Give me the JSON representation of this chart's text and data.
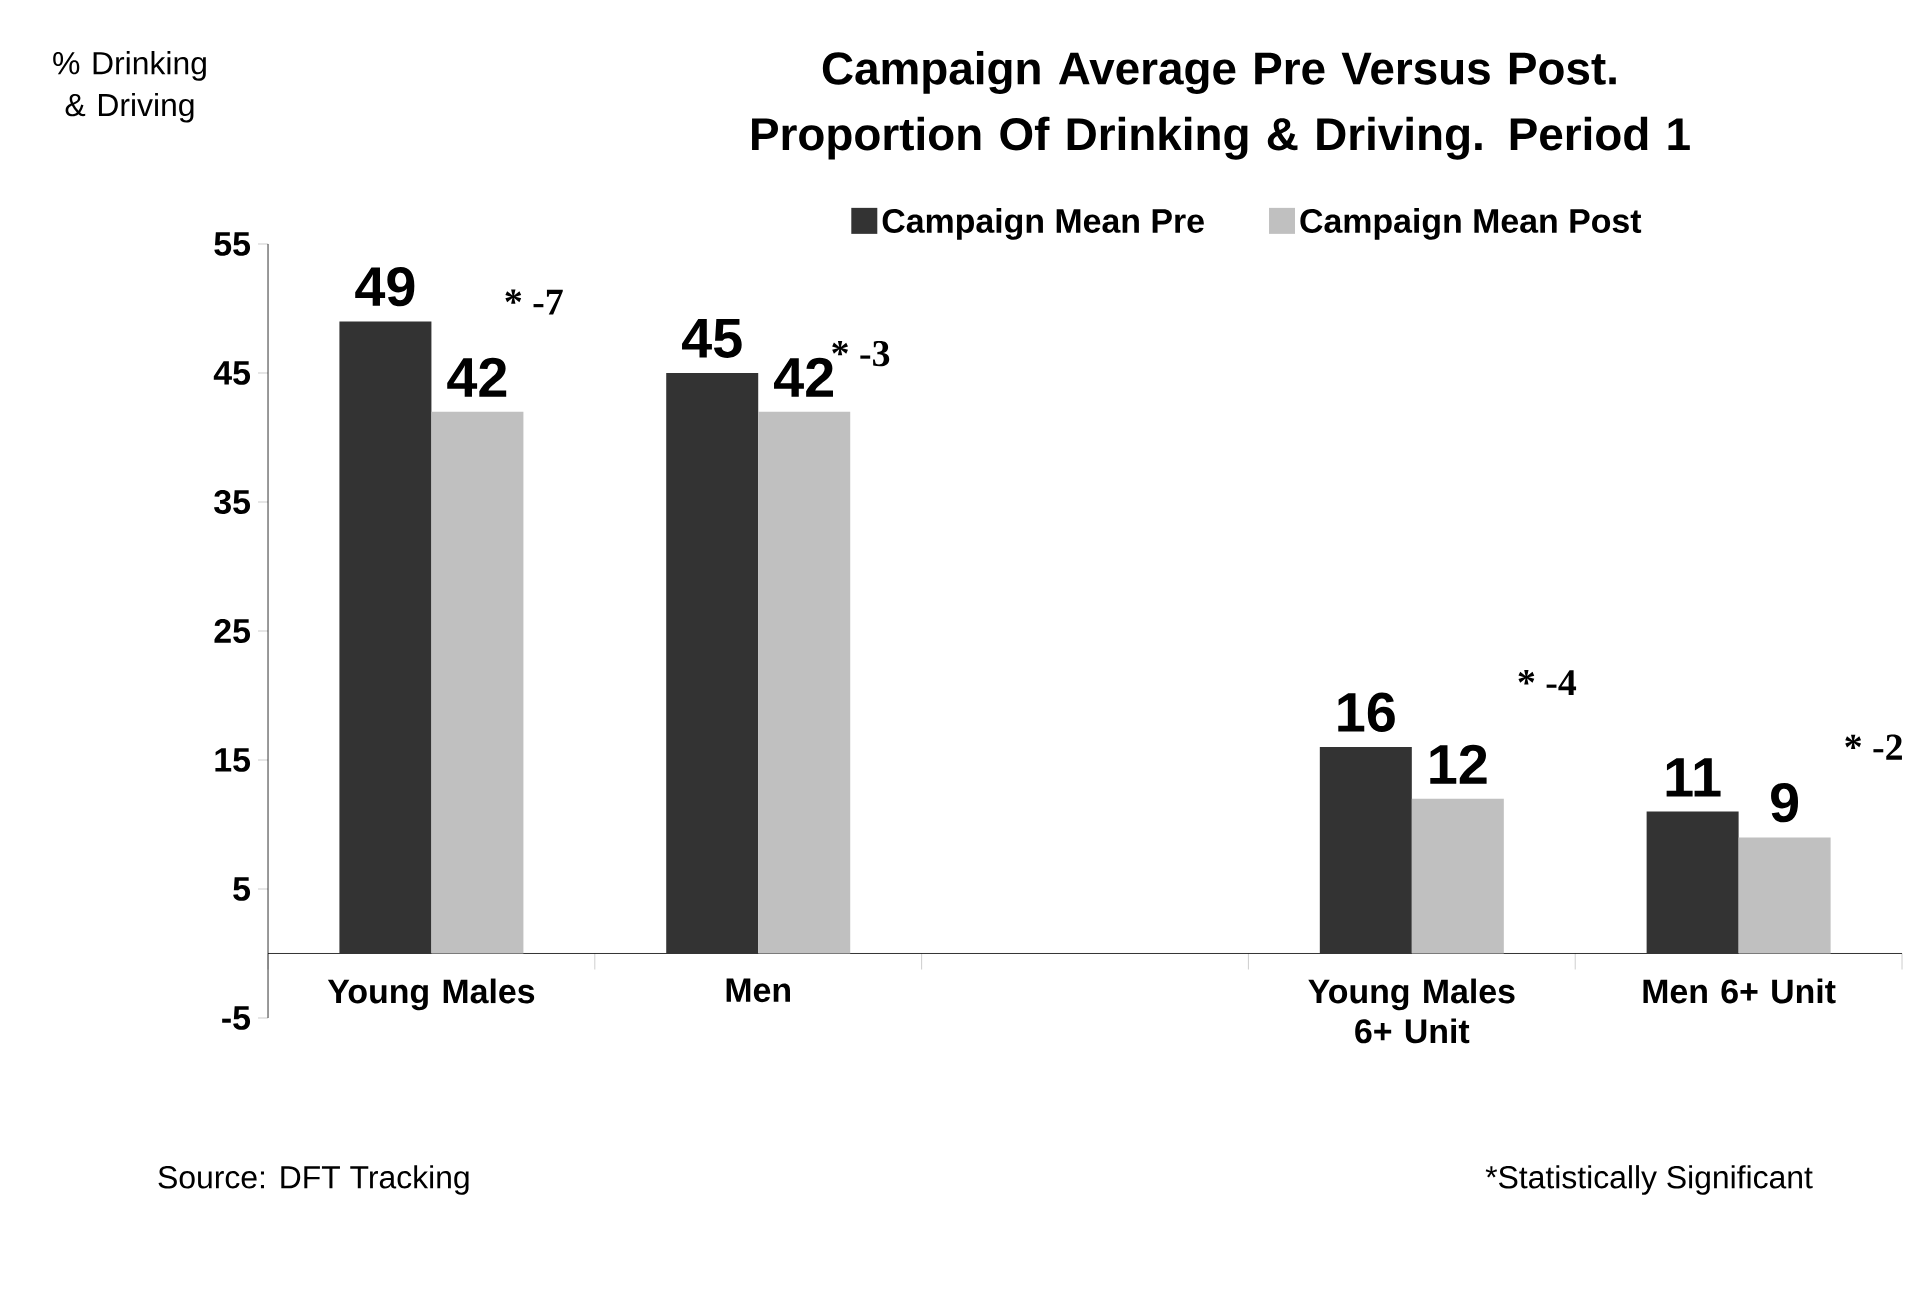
{
  "chart_data": {
    "type": "bar",
    "title": "Campaign Average Pre Versus Post. Proportion Of Drinking & Driving. Period 1",
    "ylabel": "% Drinking & Driving",
    "categories": [
      "Young Males",
      "Men",
      null,
      "Young Males 6+ Unit",
      "Men 6+ Unit"
    ],
    "series": [
      {
        "name": "Campaign Mean Pre",
        "color": "#333333",
        "values": [
          49,
          45,
          null,
          16,
          11
        ]
      },
      {
        "name": "Campaign Mean Post",
        "color": "#c0c0c0",
        "values": [
          42,
          42,
          null,
          12,
          9
        ]
      }
    ],
    "ylim": [
      -5,
      55
    ],
    "yticks": [
      -5,
      5,
      15,
      25,
      35,
      45,
      55
    ],
    "data_labels": true,
    "legend": "top",
    "annotations": [
      "* -7",
      "* -3",
      "* -4",
      "* -2",
      "Source: DFT Tracking",
      "*Statistically Significant"
    ]
  }
}
